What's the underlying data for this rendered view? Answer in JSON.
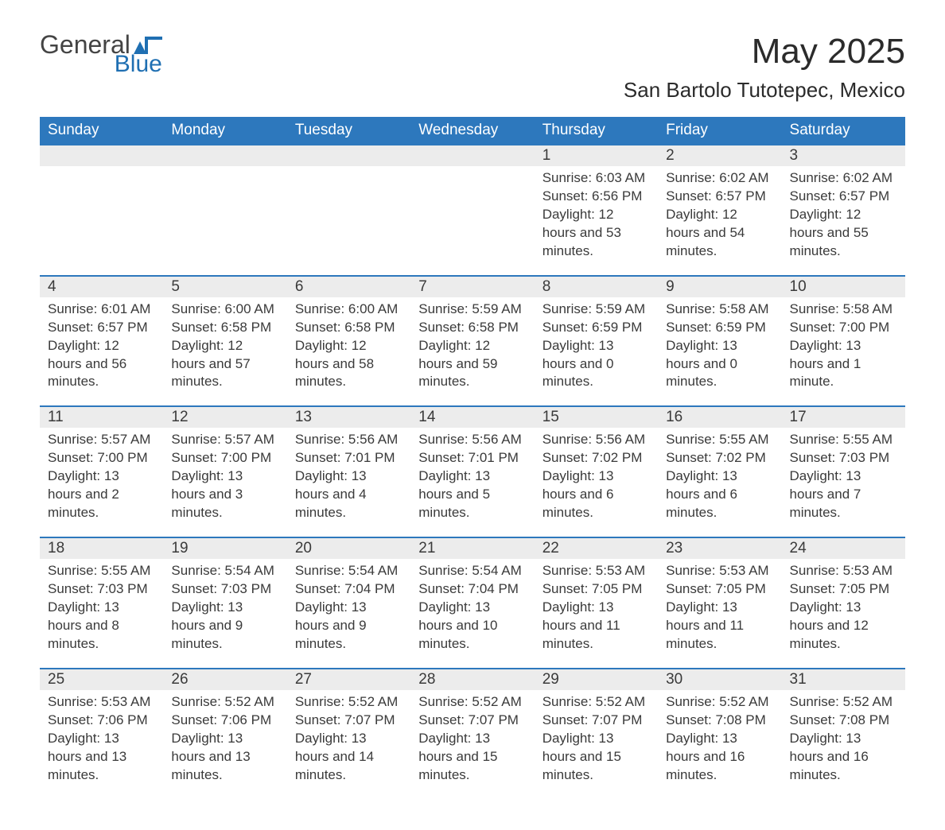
{
  "logo": {
    "word1": "General",
    "word2": "Blue",
    "shape_color": "#1f6fb2"
  },
  "title": "May 2025",
  "location": "San Bartolo Tutotepec, Mexico",
  "colors": {
    "header_bg": "#2d78bd",
    "header_text": "#ffffff",
    "daynum_bg": "#ececec",
    "daynum_border": "#2d78bd",
    "text": "#3a3a3a",
    "page_bg": "#ffffff"
  },
  "typography": {
    "title_fontsize": 44,
    "location_fontsize": 26,
    "header_fontsize": 19,
    "daynum_fontsize": 19,
    "detail_fontsize": 17
  },
  "weekdays": [
    "Sunday",
    "Monday",
    "Tuesday",
    "Wednesday",
    "Thursday",
    "Friday",
    "Saturday"
  ],
  "weeks": [
    [
      null,
      null,
      null,
      null,
      {
        "n": "1",
        "sr": "Sunrise: 6:03 AM",
        "ss": "Sunset: 6:56 PM",
        "dl": "Daylight: 12 hours and 53 minutes."
      },
      {
        "n": "2",
        "sr": "Sunrise: 6:02 AM",
        "ss": "Sunset: 6:57 PM",
        "dl": "Daylight: 12 hours and 54 minutes."
      },
      {
        "n": "3",
        "sr": "Sunrise: 6:02 AM",
        "ss": "Sunset: 6:57 PM",
        "dl": "Daylight: 12 hours and 55 minutes."
      }
    ],
    [
      {
        "n": "4",
        "sr": "Sunrise: 6:01 AM",
        "ss": "Sunset: 6:57 PM",
        "dl": "Daylight: 12 hours and 56 minutes."
      },
      {
        "n": "5",
        "sr": "Sunrise: 6:00 AM",
        "ss": "Sunset: 6:58 PM",
        "dl": "Daylight: 12 hours and 57 minutes."
      },
      {
        "n": "6",
        "sr": "Sunrise: 6:00 AM",
        "ss": "Sunset: 6:58 PM",
        "dl": "Daylight: 12 hours and 58 minutes."
      },
      {
        "n": "7",
        "sr": "Sunrise: 5:59 AM",
        "ss": "Sunset: 6:58 PM",
        "dl": "Daylight: 12 hours and 59 minutes."
      },
      {
        "n": "8",
        "sr": "Sunrise: 5:59 AM",
        "ss": "Sunset: 6:59 PM",
        "dl": "Daylight: 13 hours and 0 minutes."
      },
      {
        "n": "9",
        "sr": "Sunrise: 5:58 AM",
        "ss": "Sunset: 6:59 PM",
        "dl": "Daylight: 13 hours and 0 minutes."
      },
      {
        "n": "10",
        "sr": "Sunrise: 5:58 AM",
        "ss": "Sunset: 7:00 PM",
        "dl": "Daylight: 13 hours and 1 minute."
      }
    ],
    [
      {
        "n": "11",
        "sr": "Sunrise: 5:57 AM",
        "ss": "Sunset: 7:00 PM",
        "dl": "Daylight: 13 hours and 2 minutes."
      },
      {
        "n": "12",
        "sr": "Sunrise: 5:57 AM",
        "ss": "Sunset: 7:00 PM",
        "dl": "Daylight: 13 hours and 3 minutes."
      },
      {
        "n": "13",
        "sr": "Sunrise: 5:56 AM",
        "ss": "Sunset: 7:01 PM",
        "dl": "Daylight: 13 hours and 4 minutes."
      },
      {
        "n": "14",
        "sr": "Sunrise: 5:56 AM",
        "ss": "Sunset: 7:01 PM",
        "dl": "Daylight: 13 hours and 5 minutes."
      },
      {
        "n": "15",
        "sr": "Sunrise: 5:56 AM",
        "ss": "Sunset: 7:02 PM",
        "dl": "Daylight: 13 hours and 6 minutes."
      },
      {
        "n": "16",
        "sr": "Sunrise: 5:55 AM",
        "ss": "Sunset: 7:02 PM",
        "dl": "Daylight: 13 hours and 6 minutes."
      },
      {
        "n": "17",
        "sr": "Sunrise: 5:55 AM",
        "ss": "Sunset: 7:03 PM",
        "dl": "Daylight: 13 hours and 7 minutes."
      }
    ],
    [
      {
        "n": "18",
        "sr": "Sunrise: 5:55 AM",
        "ss": "Sunset: 7:03 PM",
        "dl": "Daylight: 13 hours and 8 minutes."
      },
      {
        "n": "19",
        "sr": "Sunrise: 5:54 AM",
        "ss": "Sunset: 7:03 PM",
        "dl": "Daylight: 13 hours and 9 minutes."
      },
      {
        "n": "20",
        "sr": "Sunrise: 5:54 AM",
        "ss": "Sunset: 7:04 PM",
        "dl": "Daylight: 13 hours and 9 minutes."
      },
      {
        "n": "21",
        "sr": "Sunrise: 5:54 AM",
        "ss": "Sunset: 7:04 PM",
        "dl": "Daylight: 13 hours and 10 minutes."
      },
      {
        "n": "22",
        "sr": "Sunrise: 5:53 AM",
        "ss": "Sunset: 7:05 PM",
        "dl": "Daylight: 13 hours and 11 minutes."
      },
      {
        "n": "23",
        "sr": "Sunrise: 5:53 AM",
        "ss": "Sunset: 7:05 PM",
        "dl": "Daylight: 13 hours and 11 minutes."
      },
      {
        "n": "24",
        "sr": "Sunrise: 5:53 AM",
        "ss": "Sunset: 7:05 PM",
        "dl": "Daylight: 13 hours and 12 minutes."
      }
    ],
    [
      {
        "n": "25",
        "sr": "Sunrise: 5:53 AM",
        "ss": "Sunset: 7:06 PM",
        "dl": "Daylight: 13 hours and 13 minutes."
      },
      {
        "n": "26",
        "sr": "Sunrise: 5:52 AM",
        "ss": "Sunset: 7:06 PM",
        "dl": "Daylight: 13 hours and 13 minutes."
      },
      {
        "n": "27",
        "sr": "Sunrise: 5:52 AM",
        "ss": "Sunset: 7:07 PM",
        "dl": "Daylight: 13 hours and 14 minutes."
      },
      {
        "n": "28",
        "sr": "Sunrise: 5:52 AM",
        "ss": "Sunset: 7:07 PM",
        "dl": "Daylight: 13 hours and 15 minutes."
      },
      {
        "n": "29",
        "sr": "Sunrise: 5:52 AM",
        "ss": "Sunset: 7:07 PM",
        "dl": "Daylight: 13 hours and 15 minutes."
      },
      {
        "n": "30",
        "sr": "Sunrise: 5:52 AM",
        "ss": "Sunset: 7:08 PM",
        "dl": "Daylight: 13 hours and 16 minutes."
      },
      {
        "n": "31",
        "sr": "Sunrise: 5:52 AM",
        "ss": "Sunset: 7:08 PM",
        "dl": "Daylight: 13 hours and 16 minutes."
      }
    ]
  ]
}
